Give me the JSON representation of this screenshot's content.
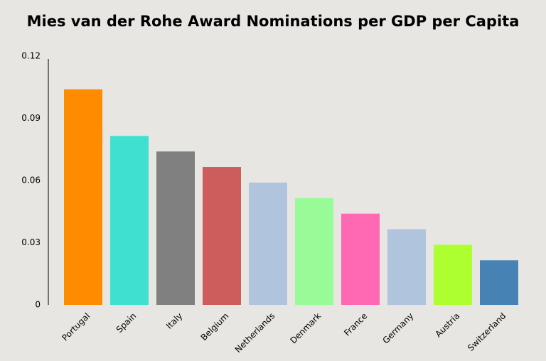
{
  "chart_data": {
    "type": "bar",
    "title": "Mies van der Rohe Award Nominations per GDP per Capita",
    "xlabel": "",
    "ylabel": "",
    "categories": [
      "Portugal",
      "Spain",
      "Italy",
      "Belgium",
      "Netherlands",
      "Denmark",
      "France",
      "Germany",
      "Austria",
      "Switzerland"
    ],
    "values": [
      0.104,
      0.0815,
      0.074,
      0.0665,
      0.059,
      0.0515,
      0.044,
      0.0365,
      0.029,
      0.0215
    ],
    "colors": [
      "#ff8c00",
      "#40e0d0",
      "#808080",
      "#cd5c5c",
      "#b0c4de",
      "#98fb98",
      "#ff69b4",
      "#b0c4de",
      "#adff2f",
      "#4682b4"
    ],
    "ylim": [
      0,
      0.12
    ],
    "yticks": [
      0,
      0.03,
      0.06,
      0.09,
      0.12
    ],
    "ytick_labels": [
      "0",
      "0.03",
      "0.06",
      "0.09",
      "0.12"
    ],
    "grid": false,
    "legend": "none"
  }
}
